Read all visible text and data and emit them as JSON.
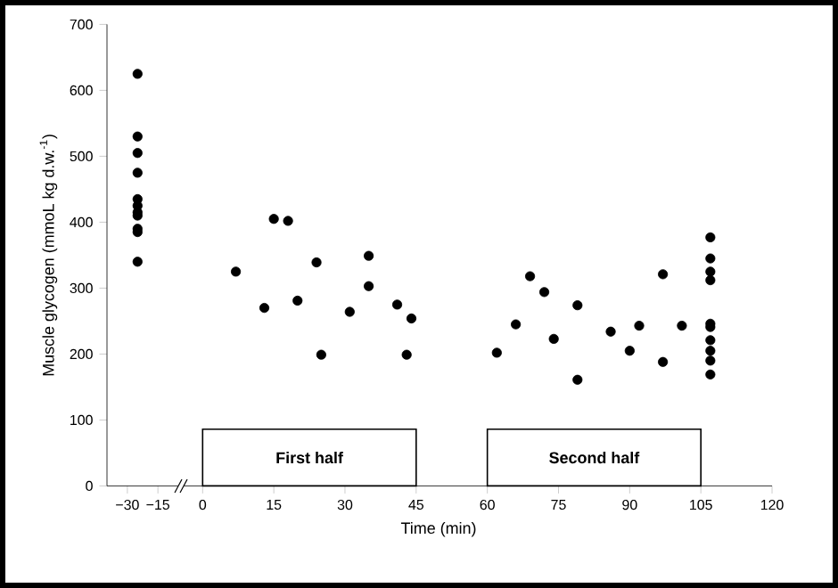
{
  "chart_data": [
    {
      "type": "scatter",
      "ylabel": "Muscle glycogen (mmoL kg d.w.$^{-1}$)",
      "color": "#000000",
      "marker": "circle",
      "x": [
        -25,
        -25,
        -25,
        -25,
        -25,
        -25,
        -25,
        -25,
        -25,
        -25,
        -25
      ],
      "values": [
        625,
        530,
        505,
        475,
        435,
        425,
        415,
        410,
        390,
        385,
        340
      ],
      "xlim": [
        -40,
        -5
      ],
      "xticks": [
        {
          "value": -30,
          "label": "−30"
        },
        {
          "value": -15,
          "label": "−15"
        }
      ],
      "ylim": [
        0,
        700
      ],
      "yticks": [
        0,
        100,
        200,
        300,
        400,
        500,
        600,
        700
      ]
    },
    {
      "type": "scatter",
      "xlabel": "Time (min)",
      "color": "#000000",
      "marker": "circle",
      "tick_labels": "x",
      "x": [
        7,
        15,
        18,
        13,
        20,
        24,
        25,
        31,
        35,
        35,
        41,
        44,
        43,
        62,
        66,
        69,
        72,
        74,
        79,
        79,
        86,
        90,
        92,
        97,
        97,
        101,
        107,
        107,
        107,
        107,
        107,
        107,
        107,
        107,
        107,
        107
      ],
      "values": [
        325,
        405,
        402,
        270,
        281,
        339,
        199,
        264,
        349,
        303,
        275,
        254,
        199,
        202,
        245,
        318,
        294,
        223,
        274,
        161,
        234,
        205,
        243,
        321,
        188,
        243,
        377,
        345,
        325,
        312,
        246,
        241,
        221,
        205,
        190,
        169
      ],
      "xlim": [
        -4,
        120
      ],
      "xticks": [
        0,
        15,
        30,
        45,
        60,
        75,
        90,
        105,
        120
      ],
      "ylim": [
        0,
        700
      ],
      "yticks": [
        0,
        100,
        200,
        300,
        400,
        500,
        600,
        700
      ],
      "bands": [
        {
          "axis": "x",
          "from": 0,
          "to": 45,
          "label": "First half"
        },
        {
          "axis": "x",
          "from": 60,
          "to": 105,
          "label": "Second half"
        }
      ]
    }
  ]
}
